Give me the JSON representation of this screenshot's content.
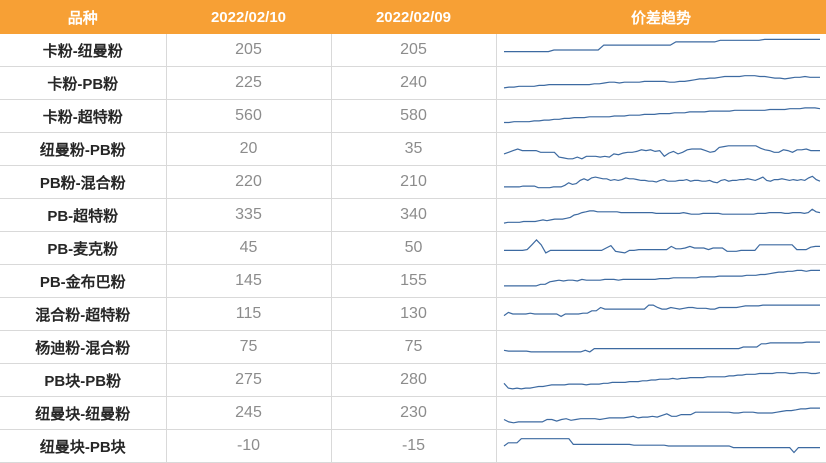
{
  "header": {
    "col_name": "品种",
    "col_date1": "2022/02/10",
    "col_date2": "2022/02/09",
    "col_trend": "价差趋势"
  },
  "line_color": "#3d6aa1",
  "rows": [
    {
      "name": "卡粉-纽曼粉",
      "v1": "205",
      "v2": "205",
      "trend": [
        14,
        14,
        14,
        14,
        14,
        14,
        14,
        14,
        14,
        16,
        16,
        16,
        16,
        16,
        16,
        16,
        16,
        16,
        22,
        22,
        22,
        22,
        22,
        22,
        22,
        22,
        22,
        22,
        22,
        22,
        22,
        26,
        26,
        26,
        26,
        26,
        26,
        26,
        26,
        28,
        28,
        28,
        28,
        28,
        28,
        28,
        28,
        29,
        29,
        29,
        29,
        29,
        29,
        29,
        29,
        29,
        29,
        29
      ]
    },
    {
      "name": "卡粉-PB粉",
      "v1": "225",
      "v2": "240",
      "trend": [
        10,
        11,
        11,
        12,
        12,
        12,
        12,
        13,
        13,
        14,
        14,
        14,
        14,
        14,
        14,
        14,
        14,
        14,
        15,
        15,
        16,
        17,
        17,
        16,
        17,
        17,
        17,
        17,
        18,
        18,
        18,
        18,
        18,
        17,
        17,
        18,
        18,
        19,
        20,
        21,
        21,
        22,
        22,
        23,
        24,
        24,
        24,
        24,
        25,
        25,
        25,
        24,
        24,
        23,
        22,
        22,
        21,
        22,
        23,
        23,
        24,
        23,
        23,
        23
      ]
    },
    {
      "name": "卡粉-超特粉",
      "v1": "560",
      "v2": "580",
      "trend": [
        8,
        8,
        9,
        9,
        9,
        9,
        10,
        10,
        11,
        11,
        12,
        12,
        13,
        13,
        14,
        14,
        14,
        15,
        15,
        15,
        15,
        15,
        16,
        16,
        16,
        17,
        17,
        17,
        18,
        18,
        18,
        19,
        19,
        19,
        20,
        20,
        20,
        21,
        21,
        21,
        21,
        22,
        22,
        22,
        22,
        22,
        23,
        23,
        23,
        23,
        23,
        23,
        23,
        24,
        24,
        24,
        24,
        25,
        25,
        25,
        26,
        26,
        26,
        25
      ]
    },
    {
      "name": "纽曼粉-PB粉",
      "v1": "20",
      "v2": "35",
      "trend": [
        10,
        12,
        14,
        16,
        14,
        14,
        14,
        14,
        12,
        12,
        12,
        12,
        6,
        5,
        4,
        4,
        6,
        4,
        7,
        7,
        7,
        6,
        7,
        6,
        10,
        9,
        11,
        12,
        12,
        13,
        15,
        14,
        15,
        13,
        14,
        7,
        11,
        13,
        10,
        12,
        15,
        16,
        16,
        16,
        14,
        12,
        13,
        18,
        19,
        20,
        20,
        20,
        20,
        20,
        20,
        20,
        17,
        15,
        14,
        12,
        12,
        15,
        14,
        12,
        15,
        15,
        16,
        14,
        14,
        14
      ]
    },
    {
      "name": "PB粉-混合粉",
      "v1": "220",
      "v2": "210",
      "trend": [
        10,
        10,
        10,
        10,
        10,
        11,
        11,
        11,
        11,
        9,
        9,
        9,
        9,
        10,
        10,
        10,
        12,
        15,
        13,
        14,
        18,
        20,
        18,
        21,
        22,
        21,
        20,
        20,
        18,
        19,
        18,
        19,
        21,
        20,
        20,
        19,
        18,
        18,
        17,
        17,
        16,
        18,
        19,
        17,
        17,
        17,
        18,
        18,
        19,
        17,
        18,
        18,
        17,
        17,
        18,
        16,
        15,
        18,
        19,
        17,
        18,
        18,
        19,
        19,
        20,
        19,
        18,
        20,
        22,
        18,
        17,
        19,
        19,
        20,
        19,
        18,
        19,
        18,
        19,
        18,
        21,
        23,
        19,
        17
      ]
    },
    {
      "name": "PB-超特粉",
      "v1": "335",
      "v2": "340",
      "trend": [
        6,
        7,
        7,
        7,
        7,
        8,
        8,
        8,
        8,
        9,
        10,
        9,
        10,
        11,
        11,
        11,
        12,
        13,
        16,
        17,
        19,
        20,
        21,
        21,
        20,
        20,
        20,
        20,
        20,
        20,
        19,
        19,
        19,
        19,
        19,
        19,
        19,
        19,
        19,
        18,
        18,
        18,
        18,
        18,
        18,
        18,
        19,
        18,
        17,
        17,
        17,
        18,
        18,
        18,
        18,
        18,
        17,
        17,
        17,
        17,
        17,
        17,
        17,
        17,
        17,
        18,
        18,
        18,
        19,
        19,
        19,
        19,
        18,
        18,
        19,
        19,
        19,
        18,
        19,
        23,
        20,
        19
      ]
    },
    {
      "name": "PB-麦克粉",
      "v1": "45",
      "v2": "50",
      "trend": [
        13,
        13,
        13,
        13,
        13,
        14,
        20,
        26,
        20,
        10,
        13,
        13,
        13,
        13,
        13,
        13,
        13,
        13,
        13,
        13,
        13,
        13,
        16,
        19,
        12,
        11,
        10,
        13,
        13,
        14,
        14,
        14,
        14,
        14,
        14,
        14,
        18,
        15,
        15,
        16,
        18,
        16,
        16,
        16,
        14,
        16,
        16,
        16,
        12,
        12,
        12,
        13,
        13,
        13,
        13,
        20,
        20,
        20,
        20,
        20,
        20,
        20,
        20,
        14,
        14,
        14,
        17,
        18,
        18
      ]
    },
    {
      "name": "PB-金布巴粉",
      "v1": "145",
      "v2": "155",
      "trend": [
        10,
        10,
        10,
        10,
        10,
        10,
        10,
        10,
        12,
        12,
        15,
        16,
        17,
        16,
        17,
        17,
        16,
        18,
        17,
        17,
        17,
        17,
        18,
        18,
        18,
        17,
        18,
        18,
        18,
        18,
        18,
        18,
        18,
        18,
        19,
        19,
        19,
        20,
        20,
        20,
        20,
        20,
        20,
        21,
        21,
        21,
        21,
        22,
        22,
        22,
        22,
        22,
        22,
        23,
        23,
        23,
        24,
        24,
        25,
        26,
        27,
        27,
        28,
        28,
        29,
        29,
        28,
        29,
        29,
        29
      ]
    },
    {
      "name": "混合粉-超特粉",
      "v1": "115",
      "v2": "130",
      "trend": [
        14,
        18,
        16,
        16,
        16,
        16,
        17,
        16,
        16,
        16,
        16,
        16,
        16,
        13,
        16,
        16,
        16,
        16,
        17,
        17,
        20,
        20,
        24,
        22,
        22,
        22,
        22,
        22,
        22,
        22,
        22,
        22,
        22,
        27,
        27,
        24,
        22,
        22,
        24,
        23,
        22,
        23,
        24,
        24,
        23,
        23,
        23,
        22,
        22,
        24,
        24,
        24,
        24,
        24,
        25,
        26,
        26,
        26,
        26,
        27,
        27,
        27,
        27,
        27,
        27,
        27,
        27,
        27,
        27,
        27,
        27,
        27,
        27
      ]
    },
    {
      "name": "杨迪粉-混合粉",
      "v1": "75",
      "v2": "75",
      "trend": [
        12,
        11,
        11,
        11,
        11,
        11,
        10,
        10,
        10,
        10,
        10,
        10,
        10,
        10,
        10,
        10,
        10,
        10,
        12,
        10,
        14,
        14,
        14,
        14,
        14,
        14,
        14,
        14,
        14,
        14,
        14,
        14,
        14,
        14,
        14,
        14,
        14,
        14,
        14,
        14,
        14,
        14,
        14,
        14,
        14,
        14,
        14,
        14,
        14,
        14,
        14,
        14,
        14,
        16,
        16,
        16,
        16,
        20,
        20,
        21,
        21,
        21,
        21,
        21,
        21,
        21,
        21,
        22,
        22,
        22,
        22
      ]
    },
    {
      "name": "PB块-PB粉",
      "v1": "275",
      "v2": "280",
      "trend": [
        12,
        6,
        5,
        6,
        5,
        6,
        6,
        7,
        8,
        8,
        9,
        10,
        10,
        10,
        10,
        11,
        11,
        11,
        11,
        10,
        11,
        11,
        11,
        12,
        12,
        13,
        13,
        13,
        13,
        14,
        14,
        14,
        15,
        15,
        16,
        16,
        17,
        17,
        17,
        18,
        17,
        18,
        18,
        19,
        19,
        19,
        19,
        20,
        20,
        20,
        20,
        20,
        21,
        21,
        22,
        22,
        23,
        23,
        23,
        24,
        24,
        24,
        24,
        25,
        25,
        25,
        24,
        24,
        25,
        25,
        25,
        24,
        24,
        25
      ]
    },
    {
      "name": "纽曼块-纽曼粉",
      "v1": "245",
      "v2": "230",
      "trend": [
        8,
        5,
        4,
        5,
        5,
        5,
        5,
        5,
        5,
        8,
        8,
        6,
        8,
        9,
        7,
        8,
        9,
        9,
        9,
        9,
        8,
        9,
        10,
        10,
        10,
        10,
        11,
        12,
        10,
        11,
        11,
        12,
        11,
        13,
        15,
        12,
        12,
        14,
        14,
        14,
        17,
        17,
        17,
        17,
        17,
        17,
        17,
        17,
        16,
        16,
        17,
        17,
        17,
        16,
        16,
        16,
        16,
        17,
        18,
        19,
        19,
        20,
        21,
        21,
        22,
        22,
        22
      ]
    },
    {
      "name": "纽曼块-PB块",
      "v1": "-10",
      "v2": "-15",
      "trend": [
        16,
        20,
        20,
        20,
        25,
        25,
        25,
        25,
        25,
        25,
        25,
        25,
        25,
        25,
        25,
        25,
        18,
        18,
        18,
        18,
        18,
        18,
        18,
        18,
        18,
        18,
        18,
        18,
        18,
        18,
        17,
        17,
        17,
        17,
        17,
        17,
        17,
        17,
        16,
        16,
        16,
        16,
        16,
        16,
        16,
        16,
        16,
        16,
        16,
        16,
        16,
        16,
        16,
        14,
        14,
        14,
        14,
        14,
        14,
        14,
        14,
        14,
        14,
        14,
        14,
        14,
        14,
        8,
        14,
        14,
        14,
        14,
        14,
        14
      ]
    }
  ]
}
